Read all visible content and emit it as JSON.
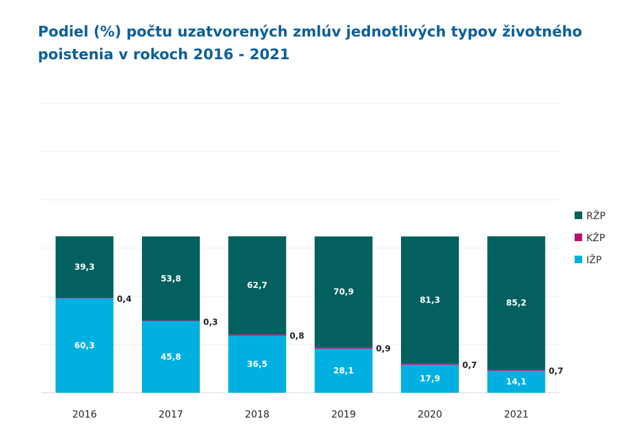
{
  "chart_data": {
    "type": "bar",
    "stacked": true,
    "title": "Podiel (%) počtu uzatvorených zmlúv jednotlivých typov životného poistenia v rokoch 2016 - 2021",
    "categories": [
      "2016",
      "2017",
      "2018",
      "2019",
      "2020",
      "2021"
    ],
    "series": [
      {
        "name": "IŽP",
        "color": "#00b0e0",
        "values": [
          60.3,
          45.8,
          36.5,
          28.1,
          17.9,
          14.1
        ],
        "labels": [
          "60,3",
          "45,8",
          "36,5",
          "28,1",
          "17,9",
          "14,1"
        ]
      },
      {
        "name": "KŽP",
        "color": "#b5126e",
        "values": [
          0.4,
          0.3,
          0.8,
          0.9,
          0.7,
          0.7
        ],
        "labels": [
          "0,4",
          "0,3",
          "0,8",
          "0,9",
          "0,7",
          "0,7"
        ]
      },
      {
        "name": "RŽP",
        "color": "#03605e",
        "values": [
          39.3,
          53.8,
          62.7,
          70.9,
          81.3,
          85.2
        ],
        "labels": [
          "39,3",
          "53,8",
          "62,7",
          "70,9",
          "81,3",
          "85,2"
        ]
      }
    ],
    "legend": {
      "position": "right",
      "order": [
        "RŽP",
        "KŽP",
        "IŽP"
      ]
    },
    "grid": true,
    "ylim": [
      0,
      185
    ],
    "xlabel": "",
    "ylabel": ""
  }
}
